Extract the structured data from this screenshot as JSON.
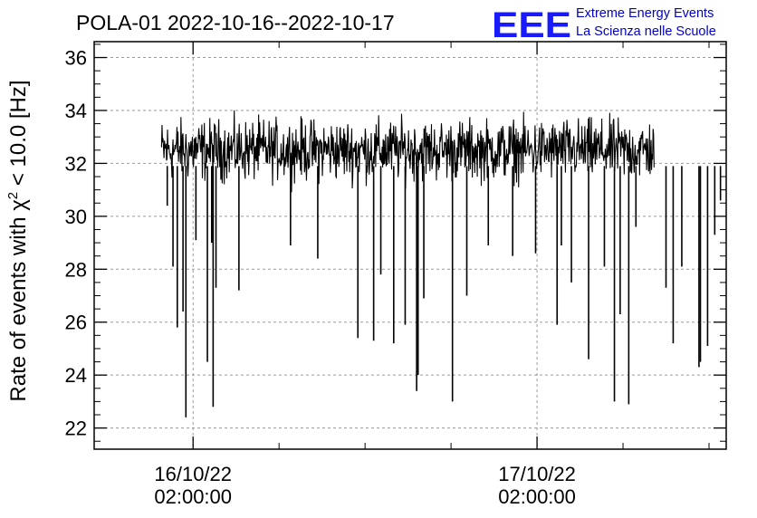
{
  "chart_data": {
    "type": "line",
    "title": "POLA-01 2022-10-16--2022-10-17",
    "xlabel": "",
    "ylabel": "Rate of events with χ² < 10.0 [Hz]",
    "ylabel_prefix": "Rate of events with ",
    "ylabel_chi": "χ",
    "ylabel_sup": "2",
    "ylabel_suffix": " < 10.0 [Hz]",
    "ylim": [
      21.2,
      36.6
    ],
    "yticks": [
      22,
      24,
      26,
      28,
      30,
      32,
      34,
      36
    ],
    "x_unit": "hours since 2022-10-16 00:00:00",
    "xlim": [
      -4.9,
      39.2
    ],
    "x_major_ticks": [
      {
        "x": 2,
        "date": "16/10/22",
        "time": "02:00:00"
      },
      {
        "x": 26,
        "date": "17/10/22",
        "time": "02:00:00"
      }
    ],
    "x_minor_ticks": [
      8,
      14,
      20,
      32,
      38
    ],
    "grid": true,
    "series": [
      {
        "name": "",
        "color": "#000000",
        "x_start": -0.2,
        "x_end": 34.2,
        "baseline": 32.5,
        "noise": 0.7,
        "dips": [
          {
            "x": 0.2,
            "y": 30.4
          },
          {
            "x": 0.6,
            "y": 28.1
          },
          {
            "x": 0.9,
            "y": 25.8
          },
          {
            "x": 1.3,
            "y": 26.4
          },
          {
            "x": 1.5,
            "y": 22.4
          },
          {
            "x": 2.2,
            "y": 29.1
          },
          {
            "x": 3.0,
            "y": 24.5
          },
          {
            "x": 3.4,
            "y": 22.8
          },
          {
            "x": 3.6,
            "y": 27.3
          },
          {
            "x": 3.3,
            "y": 29.0
          },
          {
            "x": 5.2,
            "y": 27.2
          },
          {
            "x": 8.8,
            "y": 28.9
          },
          {
            "x": 10.7,
            "y": 28.4
          },
          {
            "x": 13.5,
            "y": 25.4
          },
          {
            "x": 14.6,
            "y": 25.3
          },
          {
            "x": 15.1,
            "y": 27.8
          },
          {
            "x": 16.0,
            "y": 25.2
          },
          {
            "x": 16.8,
            "y": 25.9
          },
          {
            "x": 17.6,
            "y": 23.4
          },
          {
            "x": 17.7,
            "y": 24.0
          },
          {
            "x": 18.1,
            "y": 26.9
          },
          {
            "x": 20.1,
            "y": 23.0
          },
          {
            "x": 21.1,
            "y": 27.0
          },
          {
            "x": 22.6,
            "y": 28.9
          },
          {
            "x": 24.3,
            "y": 28.5
          },
          {
            "x": 25.9,
            "y": 28.6
          },
          {
            "x": 27.4,
            "y": 25.9
          },
          {
            "x": 27.7,
            "y": 28.9
          },
          {
            "x": 28.4,
            "y": 27.5
          },
          {
            "x": 29.6,
            "y": 24.6
          },
          {
            "x": 30.7,
            "y": 28.1
          },
          {
            "x": 31.4,
            "y": 23.0
          },
          {
            "x": 31.8,
            "y": 26.3
          },
          {
            "x": 32.4,
            "y": 22.9
          },
          {
            "x": 32.9,
            "y": 29.6
          },
          {
            "x": 35.0,
            "y": 27.3
          },
          {
            "x": 35.5,
            "y": 25.2
          },
          {
            "x": 36.1,
            "y": 28.1
          },
          {
            "x": 37.3,
            "y": 24.3
          },
          {
            "x": 37.4,
            "y": 24.5
          },
          {
            "x": 37.9,
            "y": 25.1
          },
          {
            "x": 38.4,
            "y": 29.3
          },
          {
            "x": 38.8,
            "y": 30.6
          }
        ]
      }
    ]
  },
  "logo": {
    "letters": "EEE",
    "line1": "Extreme Energy Events",
    "line2": "La Scienza nelle Scuole"
  }
}
